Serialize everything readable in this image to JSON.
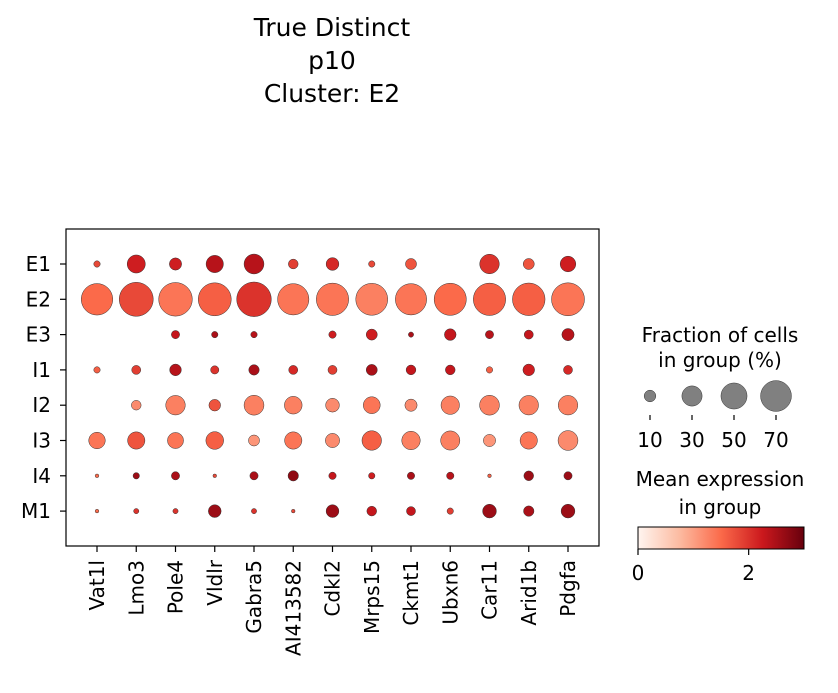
{
  "chart_data": {
    "type": "dotplot",
    "title": [
      "True Distinct",
      "p10",
      "Cluster: E2"
    ],
    "genes": [
      "Vat1l",
      "Lmo3",
      "Pole4",
      "Vldlr",
      "Gabra5",
      "AI413582",
      "Cdkl2",
      "Mrps15",
      "Ckmt1",
      "Ubxn6",
      "Car11",
      "Arid1b",
      "Pdgfa"
    ],
    "groups": [
      "E1",
      "E2",
      "E3",
      "I1",
      "I2",
      "I3",
      "I4",
      "M1"
    ],
    "fraction_pct": [
      [
        3,
        24,
        11,
        22,
        29,
        7,
        12,
        3,
        9,
        0,
        28,
        9,
        18
      ],
      [
        73,
        85,
        83,
        80,
        88,
        72,
        77,
        75,
        72,
        76,
        77,
        78,
        80
      ],
      [
        0,
        0,
        5,
        3,
        3,
        0,
        4,
        9,
        2,
        10,
        5,
        6,
        11
      ],
      [
        3,
        6,
        10,
        5,
        8,
        6,
        6,
        9,
        7,
        7,
        3,
        10,
        6
      ],
      [
        0,
        7,
        28,
        10,
        29,
        23,
        14,
        21,
        11,
        25,
        29,
        28,
        28
      ],
      [
        20,
        22,
        19,
        23,
        9,
        22,
        15,
        28,
        25,
        27,
        11,
        22,
        29
      ],
      [
        1,
        3,
        5,
        1,
        5,
        8,
        4,
        3,
        4,
        4,
        1,
        7,
        5
      ],
      [
        1,
        2,
        2,
        12,
        2,
        1,
        12,
        7,
        6,
        3,
        14,
        8,
        14
      ]
    ],
    "mean_expression": [
      [
        1.8,
        2.2,
        2.2,
        2.4,
        2.4,
        1.9,
        2.1,
        1.8,
        1.7,
        0,
        2.0,
        1.7,
        2.2
      ],
      [
        1.5,
        1.8,
        1.4,
        1.6,
        2.0,
        1.4,
        1.4,
        1.3,
        1.4,
        1.5,
        1.6,
        1.6,
        1.4
      ],
      [
        0,
        0,
        2.3,
        2.5,
        2.4,
        0,
        2.2,
        2.2,
        2.5,
        2.3,
        2.4,
        2.3,
        2.4
      ],
      [
        1.6,
        1.9,
        2.4,
        2.0,
        2.5,
        2.1,
        1.9,
        2.5,
        2.3,
        2.3,
        1.6,
        2.2,
        2.1
      ],
      [
        0,
        1.2,
        1.3,
        1.7,
        1.3,
        1.3,
        1.2,
        1.4,
        1.2,
        1.3,
        1.3,
        1.3,
        1.3
      ],
      [
        1.4,
        1.7,
        1.4,
        1.6,
        1.1,
        1.4,
        1.2,
        1.6,
        1.3,
        1.3,
        1.1,
        1.4,
        1.2
      ],
      [
        1.5,
        2.6,
        2.5,
        1.8,
        2.5,
        2.7,
        2.3,
        2.2,
        2.5,
        2.4,
        1.6,
        2.6,
        2.6
      ],
      [
        1.5,
        2.0,
        2.0,
        2.6,
        2.0,
        1.8,
        2.6,
        2.3,
        2.3,
        1.9,
        2.6,
        2.5,
        2.6
      ]
    ],
    "size_legend": {
      "title": [
        "Fraction of cells",
        "in group (%)"
      ],
      "values": [
        10,
        30,
        50,
        70
      ],
      "labels": [
        "10",
        "30",
        "50",
        "70"
      ],
      "color": "#808080"
    },
    "color_legend": {
      "title": [
        "Mean expression",
        "in group"
      ],
      "min": 0,
      "max": 3,
      "ticks": [
        0,
        2
      ],
      "tick_labels": [
        "0",
        "2"
      ],
      "colormap": "Reds",
      "colors": [
        "#fff5f0",
        "#fcbba1",
        "#fb6a4a",
        "#cb181d",
        "#67000d"
      ]
    }
  }
}
